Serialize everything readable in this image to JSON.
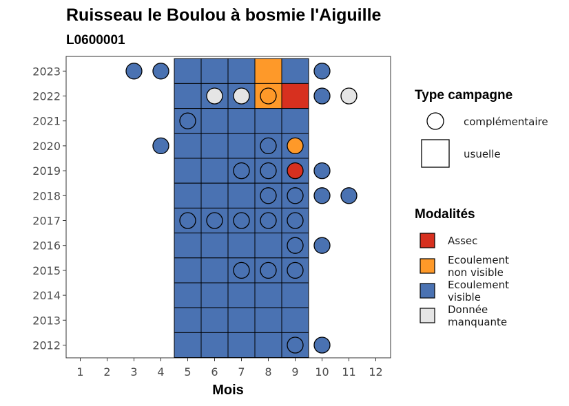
{
  "title": "Ruisseau le Boulou à bosmie l'Aiguille",
  "subtitle": "L0600001",
  "chart_data": {
    "type": "heatmap",
    "title": "Ruisseau le Boulou à bosmie l'Aiguille",
    "subtitle": "L0600001",
    "xlabel": "Mois",
    "ylabel": "",
    "x_ticks": [
      "1",
      "2",
      "3",
      "4",
      "5",
      "6",
      "7",
      "8",
      "9",
      "10",
      "11",
      "12"
    ],
    "y_ticks": [
      "2012",
      "2013",
      "2014",
      "2015",
      "2016",
      "2017",
      "2018",
      "2019",
      "2020",
      "2021",
      "2022",
      "2023"
    ],
    "colors": {
      "Assec": "#d7301f",
      "Ecoulement non visible": "#fe9929",
      "Ecoulement visible": "#4a72b2",
      "Donnée manquante": "#e5e5e5"
    },
    "legend_type_title": "Type campagne",
    "legend_type": [
      {
        "key": "complementaire",
        "label": "complémentaire",
        "shape": "circle"
      },
      {
        "key": "usuelle",
        "label": "usuelle",
        "shape": "square"
      }
    ],
    "legend_mod_title": "Modalités",
    "legend_mod": [
      {
        "key": "Assec",
        "lines": [
          "Assec"
        ]
      },
      {
        "key": "Ecoulement non visible",
        "lines": [
          "Ecoulement",
          "non visible"
        ]
      },
      {
        "key": "Ecoulement visible",
        "lines": [
          "Ecoulement",
          "visible"
        ]
      },
      {
        "key": "Donnée manquante",
        "lines": [
          "Donnée",
          "manquante"
        ]
      }
    ],
    "usuelle": [
      {
        "year": 2023,
        "months": [
          5,
          6,
          7,
          8,
          9
        ],
        "values": [
          "Ecoulement visible",
          "Ecoulement visible",
          "Ecoulement visible",
          "Ecoulement non visible",
          "Ecoulement visible"
        ]
      },
      {
        "year": 2022,
        "months": [
          5,
          6,
          7,
          8,
          9
        ],
        "values": [
          "Ecoulement visible",
          "Ecoulement visible",
          "Ecoulement visible",
          "Ecoulement non visible",
          "Assec"
        ]
      },
      {
        "year": 2021,
        "months": [
          5,
          6,
          7,
          8,
          9
        ],
        "values": [
          "Ecoulement visible",
          "Ecoulement visible",
          "Ecoulement visible",
          "Ecoulement visible",
          "Ecoulement visible"
        ]
      },
      {
        "year": 2020,
        "months": [
          5,
          6,
          7,
          8,
          9
        ],
        "values": [
          "Ecoulement visible",
          "Ecoulement visible",
          "Ecoulement visible",
          "Ecoulement visible",
          "Ecoulement visible"
        ]
      },
      {
        "year": 2019,
        "months": [
          5,
          6,
          7,
          8,
          9
        ],
        "values": [
          "Ecoulement visible",
          "Ecoulement visible",
          "Ecoulement visible",
          "Ecoulement visible",
          "Ecoulement visible"
        ]
      },
      {
        "year": 2018,
        "months": [
          5,
          6,
          7,
          8,
          9
        ],
        "values": [
          "Ecoulement visible",
          "Ecoulement visible",
          "Ecoulement visible",
          "Ecoulement visible",
          "Ecoulement visible"
        ]
      },
      {
        "year": 2017,
        "months": [
          5,
          6,
          7,
          8,
          9
        ],
        "values": [
          "Ecoulement visible",
          "Ecoulement visible",
          "Ecoulement visible",
          "Ecoulement visible",
          "Ecoulement visible"
        ]
      },
      {
        "year": 2016,
        "months": [
          5,
          6,
          7,
          8,
          9
        ],
        "values": [
          "Ecoulement visible",
          "Ecoulement visible",
          "Ecoulement visible",
          "Ecoulement visible",
          "Ecoulement visible"
        ]
      },
      {
        "year": 2015,
        "months": [
          5,
          6,
          7,
          8,
          9
        ],
        "values": [
          "Ecoulement visible",
          "Ecoulement visible",
          "Ecoulement visible",
          "Ecoulement visible",
          "Ecoulement visible"
        ]
      },
      {
        "year": 2014,
        "months": [
          5,
          6,
          7,
          8,
          9
        ],
        "values": [
          "Ecoulement visible",
          "Ecoulement visible",
          "Ecoulement visible",
          "Ecoulement visible",
          "Ecoulement visible"
        ]
      },
      {
        "year": 2013,
        "months": [
          5,
          6,
          7,
          8,
          9
        ],
        "values": [
          "Ecoulement visible",
          "Ecoulement visible",
          "Ecoulement visible",
          "Ecoulement visible",
          "Ecoulement visible"
        ]
      },
      {
        "year": 2012,
        "months": [
          5,
          6,
          7,
          8,
          9
        ],
        "values": [
          "Ecoulement visible",
          "Ecoulement visible",
          "Ecoulement visible",
          "Ecoulement visible",
          "Ecoulement visible"
        ]
      }
    ],
    "complementaire": [
      {
        "year": 2023,
        "month": 3,
        "value": "Ecoulement visible"
      },
      {
        "year": 2023,
        "month": 4,
        "value": "Ecoulement visible"
      },
      {
        "year": 2023,
        "month": 10,
        "value": "Ecoulement visible"
      },
      {
        "year": 2022,
        "month": 6,
        "value": "Donnée manquante"
      },
      {
        "year": 2022,
        "month": 7,
        "value": "Donnée manquante"
      },
      {
        "year": 2022,
        "month": 8,
        "value": "Ecoulement non visible"
      },
      {
        "year": 2022,
        "month": 10,
        "value": "Ecoulement visible"
      },
      {
        "year": 2022,
        "month": 11,
        "value": "Donnée manquante"
      },
      {
        "year": 2021,
        "month": 5,
        "value": "Ecoulement visible"
      },
      {
        "year": 2020,
        "month": 4,
        "value": "Ecoulement visible"
      },
      {
        "year": 2020,
        "month": 8,
        "value": "Ecoulement visible"
      },
      {
        "year": 2020,
        "month": 9,
        "value": "Ecoulement non visible"
      },
      {
        "year": 2019,
        "month": 7,
        "value": "Ecoulement visible"
      },
      {
        "year": 2019,
        "month": 8,
        "value": "Ecoulement visible"
      },
      {
        "year": 2019,
        "month": 9,
        "value": "Assec"
      },
      {
        "year": 2019,
        "month": 10,
        "value": "Ecoulement visible"
      },
      {
        "year": 2018,
        "month": 8,
        "value": "Ecoulement visible"
      },
      {
        "year": 2018,
        "month": 9,
        "value": "Ecoulement visible"
      },
      {
        "year": 2018,
        "month": 10,
        "value": "Ecoulement visible"
      },
      {
        "year": 2018,
        "month": 11,
        "value": "Ecoulement visible"
      },
      {
        "year": 2017,
        "month": 5,
        "value": "Ecoulement visible"
      },
      {
        "year": 2017,
        "month": 6,
        "value": "Ecoulement visible"
      },
      {
        "year": 2017,
        "month": 7,
        "value": "Ecoulement visible"
      },
      {
        "year": 2017,
        "month": 8,
        "value": "Ecoulement visible"
      },
      {
        "year": 2017,
        "month": 9,
        "value": "Ecoulement visible"
      },
      {
        "year": 2016,
        "month": 9,
        "value": "Ecoulement visible"
      },
      {
        "year": 2016,
        "month": 10,
        "value": "Ecoulement visible"
      },
      {
        "year": 2015,
        "month": 7,
        "value": "Ecoulement visible"
      },
      {
        "year": 2015,
        "month": 8,
        "value": "Ecoulement visible"
      },
      {
        "year": 2015,
        "month": 9,
        "value": "Ecoulement visible"
      },
      {
        "year": 2012,
        "month": 9,
        "value": "Ecoulement visible"
      },
      {
        "year": 2012,
        "month": 10,
        "value": "Ecoulement visible"
      }
    ]
  }
}
